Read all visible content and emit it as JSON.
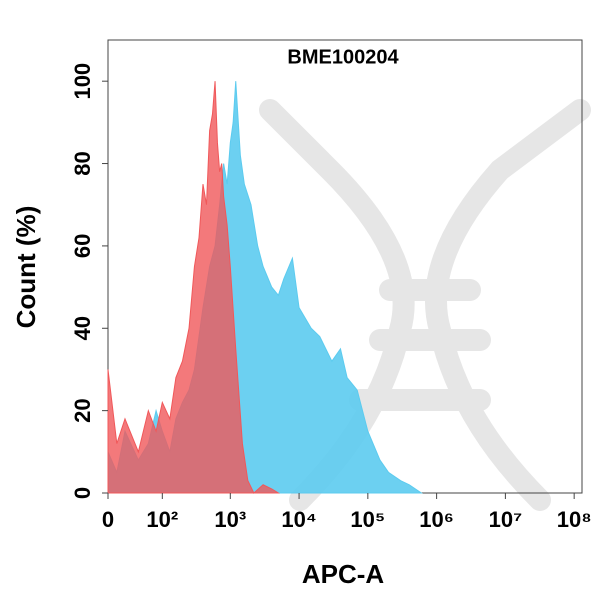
{
  "chart_data": {
    "type": "area",
    "title": "BME100204",
    "x_label": "APC-A",
    "y_label": "Count  (%)",
    "xscale": "biexponential",
    "xlim": [
      0,
      130000000
    ],
    "xticks": [
      0,
      {
        "value": 100,
        "label": "10²"
      },
      {
        "value": 1000,
        "label": "10³"
      },
      {
        "value": 10000,
        "label": "10⁴"
      },
      {
        "value": 100000,
        "label": "10⁵"
      },
      {
        "value": 1000000,
        "label": "10⁶"
      },
      {
        "value": 10000000,
        "label": "10⁷"
      },
      {
        "value": 100000000,
        "label": "10⁸"
      }
    ],
    "ylim": [
      0,
      110
    ],
    "yticks": [
      0,
      20,
      40,
      60,
      80,
      100
    ],
    "series": [
      {
        "color": "#5ccbef",
        "x": [
          0,
          10,
          20,
          40,
          60,
          80,
          100,
          130,
          160,
          200,
          250,
          300,
          400,
          500,
          600,
          700,
          800,
          900,
          1000,
          1100,
          1200,
          1400,
          1600,
          2000,
          2500,
          3000,
          4000,
          5000,
          6000,
          8000,
          10000,
          15000,
          20000,
          30000,
          40000,
          50000,
          70000,
          100000,
          150000,
          200000,
          300000,
          400000,
          600000
        ],
        "values": [
          10,
          5,
          15,
          8,
          12,
          20,
          15,
          10,
          18,
          22,
          25,
          30,
          45,
          55,
          60,
          70,
          80,
          75,
          85,
          90,
          100,
          82,
          75,
          70,
          60,
          55,
          50,
          48,
          52,
          57,
          45,
          40,
          38,
          32,
          35,
          28,
          25,
          15,
          8,
          5,
          3,
          2,
          0
        ]
      },
      {
        "color": "#f0585a",
        "x": [
          0,
          10,
          20,
          40,
          60,
          80,
          100,
          130,
          160,
          200,
          250,
          300,
          350,
          400,
          450,
          500,
          550,
          600,
          650,
          700,
          750,
          800,
          900,
          1000,
          1200,
          1500,
          1800,
          2200,
          3000,
          4000,
          5000
        ],
        "values": [
          30,
          12,
          18,
          10,
          20,
          15,
          22,
          18,
          28,
          32,
          40,
          55,
          62,
          75,
          70,
          88,
          92,
          100,
          85,
          78,
          80,
          72,
          65,
          55,
          35,
          12,
          3,
          0,
          2,
          1,
          0
        ]
      }
    ]
  }
}
